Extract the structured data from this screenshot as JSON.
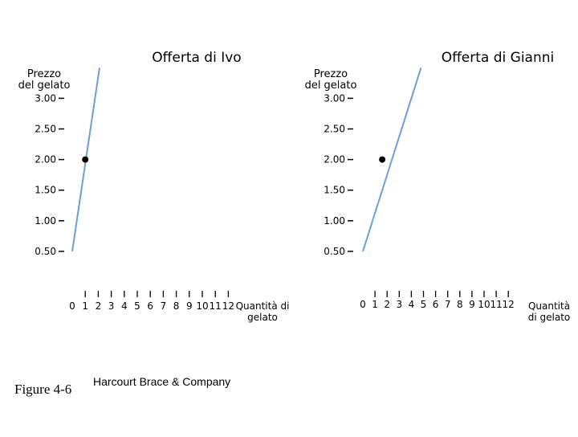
{
  "figure_label": "Figure 4-6",
  "publisher": "Harcourt Brace & Company",
  "chart_data": [
    {
      "type": "line",
      "title": "Offerta di Ivo",
      "ylabel": [
        "Prezzo",
        "del  gelato"
      ],
      "xlabel": [
        "Quantità di",
        "gelato"
      ],
      "y_ticks": [
        "3.00",
        "2.50",
        "2.00",
        "1.50",
        "1.00",
        "0.50"
      ],
      "x_ticks": [
        "0",
        "1",
        "2",
        "3",
        "4",
        "5",
        "6",
        "7",
        "8",
        "9",
        "10",
        "11",
        "12"
      ],
      "series": [
        {
          "points": [
            [
              0,
              0.5
            ],
            [
              2.1,
              3.5
            ]
          ],
          "color": "#6a9fd8"
        }
      ],
      "markers": [
        [
          1,
          2.0
        ]
      ],
      "ylim": [
        0,
        3.5
      ],
      "xlim": [
        0,
        12
      ]
    },
    {
      "type": "line",
      "title": "Offerta di Gianni",
      "ylabel": [
        "Prezzo",
        "del gelato"
      ],
      "xlabel": [
        "Quantità",
        "di gelato"
      ],
      "y_ticks": [
        "3.00",
        "2.50",
        "2.00",
        "1.50",
        "1.00",
        "0.50"
      ],
      "x_ticks": [
        "0",
        "1",
        "2",
        "3",
        "4",
        "5",
        "6",
        "7",
        "8",
        "9",
        "10",
        "11",
        "12"
      ],
      "series": [
        {
          "points": [
            [
              0,
              0.5
            ],
            [
              4.8,
              3.5
            ]
          ],
          "color": "#6a9fd8"
        }
      ],
      "markers": [
        [
          1.6,
          2.0
        ]
      ],
      "ylim": [
        0,
        3.5
      ],
      "xlim": [
        0,
        12
      ]
    }
  ]
}
